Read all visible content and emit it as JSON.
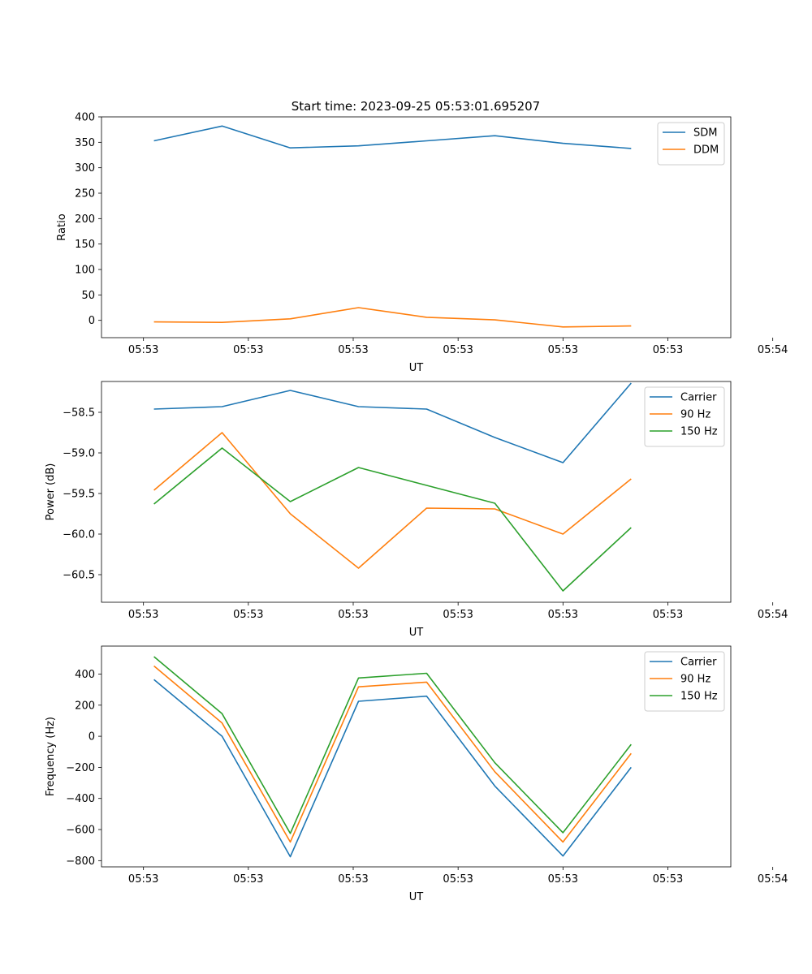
{
  "figure_title": "Start time: 2023-09-25 05:53:01.695207",
  "colors": {
    "blue": "#1f77b4",
    "orange": "#ff7f0e",
    "green": "#2ca02c"
  },
  "chart_data": [
    {
      "type": "line",
      "title": "Start time: 2023-09-25 05:53:01.695207",
      "xlabel": "UT",
      "ylabel": "Ratio",
      "xlim": [
        -0.4,
        5.6
      ],
      "ylim": [
        -34,
        400
      ],
      "x": [
        0.1,
        0.75,
        1.4,
        2.05,
        2.7,
        3.35,
        4.0,
        4.65
      ],
      "xticks": [
        0,
        1,
        2,
        3,
        4,
        5,
        6
      ],
      "xticklabels": [
        "05:53",
        "05:53",
        "05:53",
        "05:53",
        "05:53",
        "05:53",
        "05:54"
      ],
      "yticks": [
        0,
        50,
        100,
        150,
        200,
        250,
        300,
        350,
        400
      ],
      "yticklabels": [
        "0",
        "50",
        "100",
        "150",
        "200",
        "250",
        "300",
        "350",
        "400"
      ],
      "legend": "top-right",
      "series": [
        {
          "name": "SDM",
          "color": "#1f77b4",
          "values": [
            353,
            382,
            339,
            343,
            353,
            363,
            348,
            338
          ]
        },
        {
          "name": "DDM",
          "color": "#ff7f0e",
          "values": [
            -3,
            -4,
            3,
            25,
            6,
            1,
            -13,
            -11
          ]
        }
      ]
    },
    {
      "type": "line",
      "title": "",
      "xlabel": "UT",
      "ylabel": "Power (dB)",
      "xlim": [
        -0.4,
        5.6
      ],
      "ylim": [
        -60.84,
        -58.12
      ],
      "x": [
        0.1,
        0.75,
        1.4,
        2.05,
        2.7,
        3.35,
        4.0,
        4.65
      ],
      "xticks": [
        0,
        1,
        2,
        3,
        4,
        5,
        6
      ],
      "xticklabels": [
        "05:53",
        "05:53",
        "05:53",
        "05:53",
        "05:53",
        "05:53",
        "05:54"
      ],
      "yticks": [
        -58.5,
        -59.0,
        -59.5,
        -60.0,
        -60.5
      ],
      "yticklabels": [
        "−58.5",
        "−59.0",
        "−59.5",
        "−60.0",
        "−60.5"
      ],
      "legend": "top-right",
      "series": [
        {
          "name": "Carrier",
          "color": "#1f77b4",
          "values": [
            -58.46,
            -58.43,
            -58.23,
            -58.43,
            -58.46,
            -58.81,
            -59.12,
            -58.14
          ]
        },
        {
          "name": "90 Hz",
          "color": "#ff7f0e",
          "values": [
            -59.46,
            -58.75,
            -59.75,
            -60.42,
            -59.68,
            -59.69,
            -60.0,
            -59.32
          ]
        },
        {
          "name": "150 Hz",
          "color": "#2ca02c",
          "values": [
            -59.63,
            -58.94,
            -59.6,
            -59.18,
            -59.4,
            -59.62,
            -60.7,
            -59.92
          ]
        }
      ]
    },
    {
      "type": "line",
      "title": "",
      "xlabel": "UT",
      "ylabel": "Frequency (Hz)",
      "xlim": [
        -0.4,
        5.6
      ],
      "ylim": [
        -840,
        580
      ],
      "x": [
        0.1,
        0.75,
        1.4,
        2.05,
        2.7,
        3.35,
        4.0,
        4.65
      ],
      "xticks": [
        0,
        1,
        2,
        3,
        4,
        5,
        6
      ],
      "xticklabels": [
        "05:53",
        "05:53",
        "05:53",
        "05:53",
        "05:53",
        "05:53",
        "05:54"
      ],
      "yticks": [
        400,
        200,
        0,
        -200,
        -400,
        -600,
        -800
      ],
      "yticklabels": [
        "400",
        "200",
        "0",
        "−200",
        "−400",
        "−600",
        "−800"
      ],
      "legend": "top-right",
      "series": [
        {
          "name": "Carrier",
          "color": "#1f77b4",
          "values": [
            365,
            0,
            -775,
            225,
            258,
            -320,
            -770,
            -200
          ]
        },
        {
          "name": "90 Hz",
          "color": "#ff7f0e",
          "values": [
            452,
            85,
            -680,
            318,
            348,
            -228,
            -680,
            -110
          ]
        },
        {
          "name": "150 Hz",
          "color": "#2ca02c",
          "values": [
            512,
            145,
            -625,
            375,
            405,
            -170,
            -620,
            -52
          ]
        }
      ]
    }
  ]
}
